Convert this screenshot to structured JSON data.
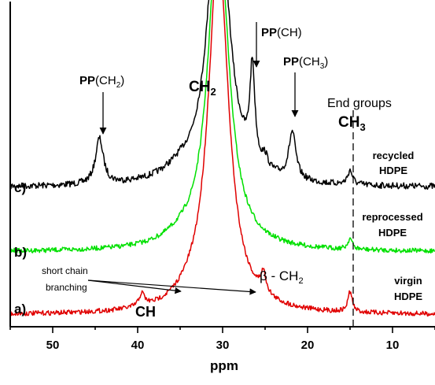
{
  "chart_data": {
    "type": "line",
    "xlabel": "ppm",
    "ylabel": "",
    "xlim": [
      55,
      5
    ],
    "reversed_x": true,
    "x_ticks": [
      50,
      40,
      30,
      20,
      10
    ],
    "grid": false,
    "legend": "none",
    "series": [
      {
        "id": "c",
        "name": "recycled HDPE",
        "marker": "c)",
        "label_line1": "recycled",
        "label_line2": "HDPE",
        "color": "#000000"
      },
      {
        "id": "b",
        "name": "reprocessed HDPE",
        "marker": "b)",
        "label_line1": "reprocessed",
        "label_line2": "HDPE",
        "color": "#00e000"
      },
      {
        "id": "a",
        "name": "virgin HDPE",
        "marker": "a)",
        "label_line1": "virgin",
        "label_line2": "HDPE",
        "color": "#e00000"
      }
    ],
    "peaks": [
      {
        "ppm": 44.5,
        "assignment": "PP(CH2)",
        "series": "c"
      },
      {
        "ppm": 26.5,
        "assignment": "PP(CH)",
        "series": "c"
      },
      {
        "ppm": 21.8,
        "assignment": "PP(CH3)",
        "series": "c"
      },
      {
        "ppm": 30.0,
        "assignment": "CH2",
        "series": "all"
      },
      {
        "ppm": 15.0,
        "assignment": "CH3 end groups",
        "series": "all"
      },
      {
        "ppm": 39.5,
        "assignment": "CH (short chain branching)",
        "series": "a"
      },
      {
        "ppm": 25.2,
        "assignment": "β - CH2 (short chain branching)",
        "series": "a"
      }
    ],
    "annotations": {
      "pp": "PP",
      "pp_ch2_open": "(CH",
      "pp_ch2_sub": "2",
      "pp_ch_rest": "(CH)",
      "pp_ch3_open": "(CH",
      "pp_ch3_sub": "3",
      "close_paren": ")",
      "ch2_main": "CH",
      "ch2_main_sub": "2",
      "end_groups": "End groups",
      "ch3_main": "CH",
      "ch3_main_sub": "3",
      "short_chain_1": "short chain",
      "short_chain_2": "branching",
      "ch_label": "CH",
      "beta": "β - CH",
      "beta_sub": "2"
    }
  }
}
